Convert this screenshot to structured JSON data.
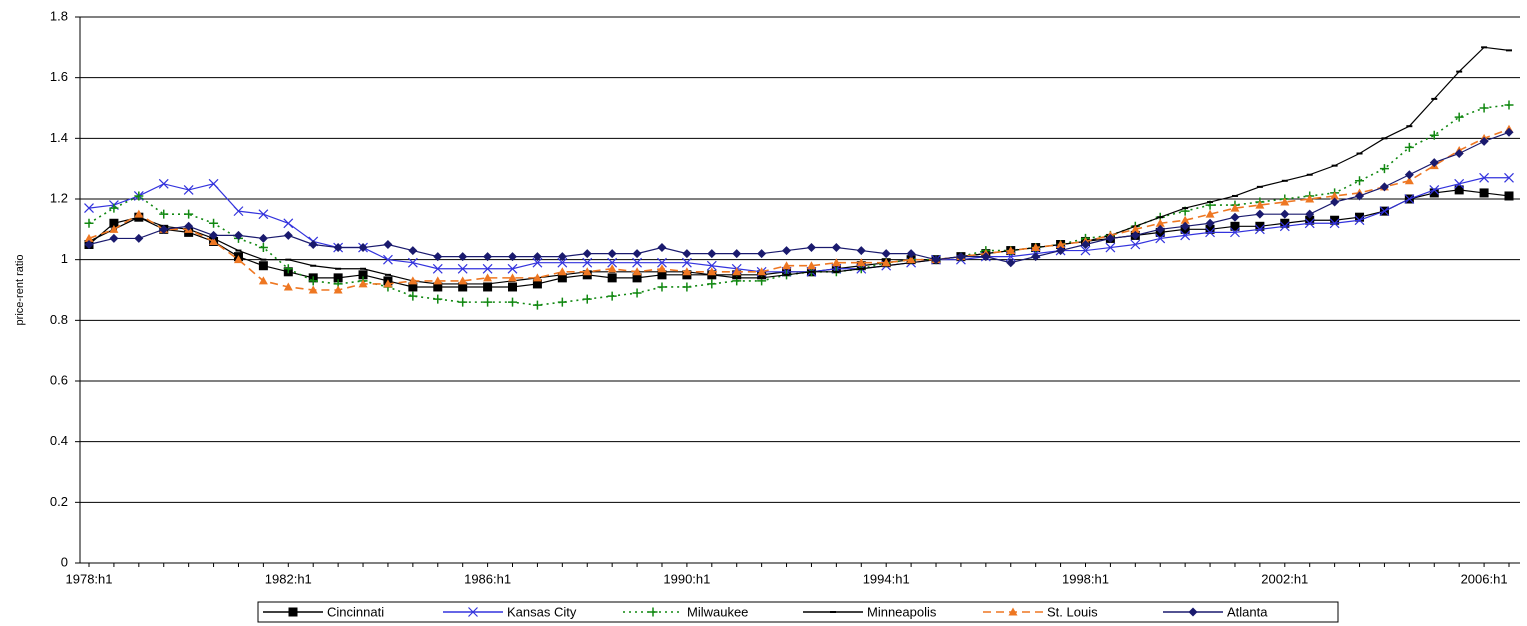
{
  "chart_data": {
    "type": "line",
    "y_label": "price-rent ratio",
    "categories": [
      "1978:h1",
      null,
      null,
      null,
      null,
      null,
      null,
      null,
      "1982:h1",
      null,
      null,
      null,
      null,
      null,
      null,
      null,
      "1986:h1",
      null,
      null,
      null,
      null,
      null,
      null,
      null,
      "1990:h1",
      null,
      null,
      null,
      null,
      null,
      null,
      null,
      "1994:h1",
      null,
      null,
      null,
      null,
      null,
      null,
      null,
      "1998:h1",
      null,
      null,
      null,
      null,
      null,
      null,
      null,
      "2002:h1",
      null,
      null,
      null,
      null,
      null,
      null,
      null,
      "2006:h1",
      null
    ],
    "ylim": [
      0,
      1.8
    ],
    "yticks": [
      0,
      0.2,
      0.4,
      0.6,
      0.8,
      1,
      1.2,
      1.4,
      1.6,
      1.8
    ],
    "grid": true,
    "legend": "bottom",
    "series": [
      {
        "name": "Cincinnati",
        "color": "#000000",
        "marker": "square",
        "dash": "solid",
        "values": [
          1.05,
          1.12,
          1.14,
          1.1,
          1.09,
          1.06,
          1.01,
          0.98,
          0.96,
          0.94,
          0.94,
          0.95,
          0.93,
          0.91,
          0.91,
          0.91,
          0.91,
          0.91,
          0.92,
          0.94,
          0.95,
          0.94,
          0.94,
          0.95,
          0.95,
          0.95,
          0.95,
          0.95,
          0.96,
          0.96,
          0.97,
          0.98,
          0.99,
          1.0,
          1.0,
          1.01,
          1.02,
          1.03,
          1.04,
          1.05,
          1.06,
          1.07,
          1.08,
          1.09,
          1.1,
          1.1,
          1.11,
          1.11,
          1.12,
          1.13,
          1.13,
          1.14,
          1.16,
          1.2,
          1.22,
          1.23,
          1.22,
          1.21
        ]
      },
      {
        "name": "Kansas City",
        "color": "#3333dd",
        "marker": "x",
        "dash": "solid",
        "values": [
          1.17,
          1.18,
          1.21,
          1.25,
          1.23,
          1.25,
          1.16,
          1.15,
          1.12,
          1.06,
          1.04,
          1.04,
          1.0,
          0.99,
          0.97,
          0.97,
          0.97,
          0.97,
          0.99,
          0.99,
          0.99,
          0.99,
          0.99,
          0.99,
          0.99,
          0.98,
          0.97,
          0.96,
          0.96,
          0.96,
          0.97,
          0.97,
          0.98,
          0.99,
          1.0,
          1.0,
          1.01,
          1.01,
          1.02,
          1.03,
          1.03,
          1.04,
          1.05,
          1.07,
          1.08,
          1.09,
          1.09,
          1.1,
          1.11,
          1.12,
          1.12,
          1.13,
          1.16,
          1.2,
          1.23,
          1.25,
          1.27,
          1.27
        ]
      },
      {
        "name": "Milwaukee",
        "color": "#118811",
        "marker": "plus",
        "dash": "dotted",
        "values": [
          1.12,
          1.17,
          1.21,
          1.15,
          1.15,
          1.12,
          1.07,
          1.04,
          0.97,
          0.93,
          0.92,
          0.93,
          0.91,
          0.88,
          0.87,
          0.86,
          0.86,
          0.86,
          0.85,
          0.86,
          0.87,
          0.88,
          0.89,
          0.91,
          0.91,
          0.92,
          0.93,
          0.93,
          0.95,
          0.96,
          0.96,
          0.97,
          0.99,
          1.0,
          1.0,
          1.01,
          1.03,
          1.03,
          1.04,
          1.05,
          1.07,
          1.08,
          1.11,
          1.14,
          1.16,
          1.18,
          1.18,
          1.19,
          1.2,
          1.21,
          1.22,
          1.26,
          1.3,
          1.37,
          1.41,
          1.47,
          1.5,
          1.51
        ]
      },
      {
        "name": "Minneapolis",
        "color": "#000000",
        "marker": "dash",
        "dash": "solid",
        "values": [
          1.06,
          1.1,
          1.14,
          1.11,
          1.1,
          1.07,
          1.03,
          1.0,
          1.0,
          0.98,
          0.97,
          0.97,
          0.95,
          0.93,
          0.92,
          0.92,
          0.92,
          0.93,
          0.94,
          0.95,
          0.96,
          0.96,
          0.96,
          0.96,
          0.96,
          0.95,
          0.94,
          0.94,
          0.95,
          0.96,
          0.96,
          0.97,
          0.98,
          0.99,
          1.0,
          1.01,
          1.02,
          1.03,
          1.04,
          1.05,
          1.06,
          1.08,
          1.11,
          1.14,
          1.17,
          1.19,
          1.21,
          1.24,
          1.26,
          1.28,
          1.31,
          1.35,
          1.4,
          1.44,
          1.53,
          1.62,
          1.7,
          1.69
        ]
      },
      {
        "name": "St. Louis",
        "color": "#ee7722",
        "marker": "triangle",
        "dash": "dashed",
        "values": [
          1.07,
          1.1,
          1.15,
          1.1,
          1.1,
          1.06,
          1.0,
          0.93,
          0.91,
          0.9,
          0.9,
          0.92,
          0.92,
          0.93,
          0.93,
          0.93,
          0.94,
          0.94,
          0.94,
          0.96,
          0.96,
          0.97,
          0.96,
          0.97,
          0.96,
          0.96,
          0.96,
          0.96,
          0.98,
          0.98,
          0.99,
          0.99,
          0.99,
          1.0,
          1.0,
          1.01,
          1.02,
          1.03,
          1.04,
          1.05,
          1.06,
          1.08,
          1.1,
          1.12,
          1.13,
          1.15,
          1.17,
          1.18,
          1.19,
          1.2,
          1.21,
          1.22,
          1.24,
          1.26,
          1.31,
          1.36,
          1.4,
          1.43
        ]
      },
      {
        "name": "Atlanta",
        "color": "#1a1a6e",
        "marker": "diamond",
        "dash": "solid",
        "values": [
          1.05,
          1.07,
          1.07,
          1.1,
          1.11,
          1.08,
          1.08,
          1.07,
          1.08,
          1.05,
          1.04,
          1.04,
          1.05,
          1.03,
          1.01,
          1.01,
          1.01,
          1.01,
          1.01,
          1.01,
          1.02,
          1.02,
          1.02,
          1.04,
          1.02,
          1.02,
          1.02,
          1.02,
          1.03,
          1.04,
          1.04,
          1.03,
          1.02,
          1.02,
          1.0,
          1.01,
          1.01,
          0.99,
          1.01,
          1.03,
          1.05,
          1.07,
          1.08,
          1.1,
          1.11,
          1.12,
          1.14,
          1.15,
          1.15,
          1.15,
          1.19,
          1.21,
          1.24,
          1.28,
          1.32,
          1.35,
          1.39,
          1.42
        ]
      }
    ]
  }
}
